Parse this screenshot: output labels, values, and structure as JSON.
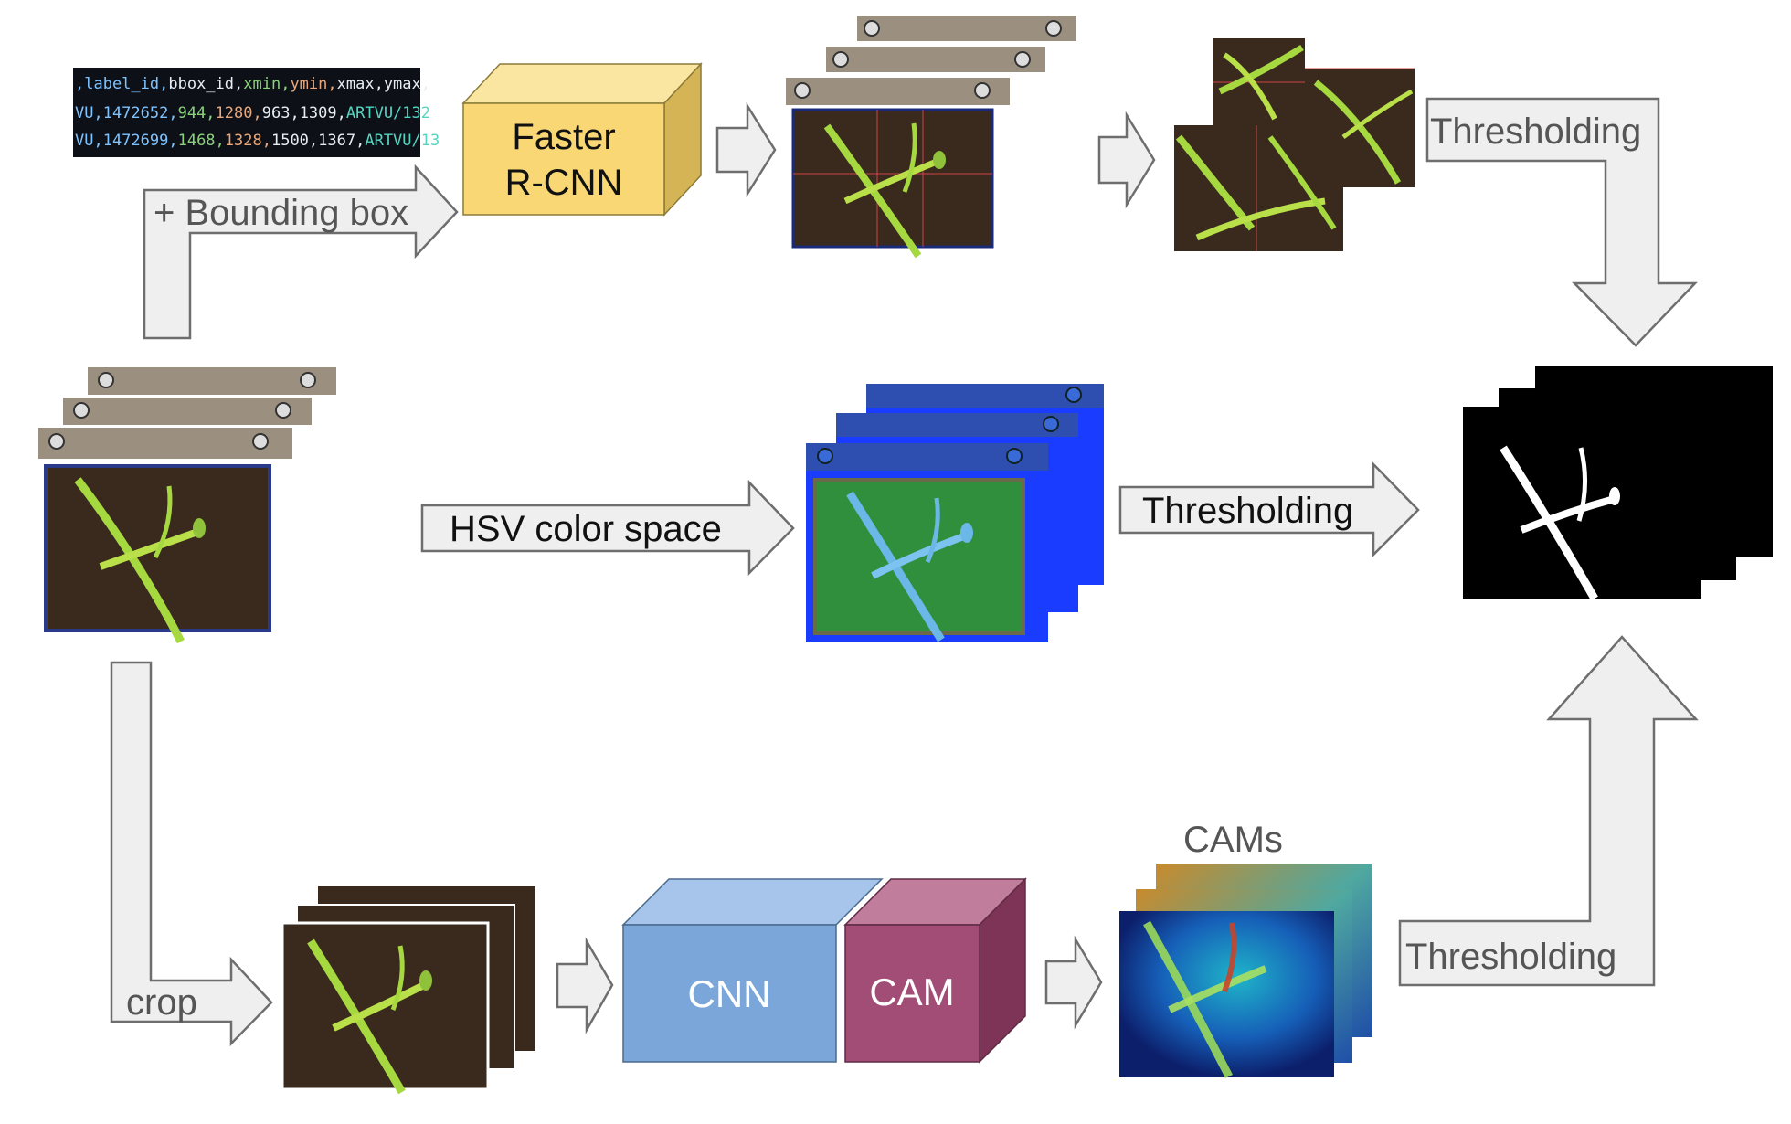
{
  "colors": {
    "arrow_fill": "#efefef",
    "arrow_stroke": "#6e6e6e",
    "faster_rcnn_front": "#f8d774",
    "faster_rcnn_top": "#fbe6a1",
    "faster_rcnn_side": "#d4b455",
    "cnn_front": "#7aa6da",
    "cnn_top": "#a7c5ea",
    "cnn_side": "#5f89bd",
    "cam_front": "#a24d75",
    "cam_top": "#c07e9c",
    "cam_side": "#7e3456",
    "soil": "#3a2a1e",
    "leaf": "#9acd32",
    "hsv_blue": "#1a3cff",
    "hsv_green": "#2f8f3c",
    "cam_navy": "#0c1f6b",
    "mask_black": "#000000"
  },
  "csv_snippet": {
    "header": {
      "t1": ",label_id,",
      "t2": "bbox_id,",
      "t3": "xmin,",
      "t4": "ymin,",
      "t5": "xmax,",
      "t6": "ymax,"
    },
    "row1": {
      "t1": "VU,1472652,",
      "t2": "944,",
      "t3": "1280,",
      "t4": "963,",
      "t5": "1309,",
      "t6": "ARTVU/132"
    },
    "row2": {
      "t1": "VU,1472699,",
      "t2": "1468,",
      "t3": "1328,",
      "t4": "1500,",
      "t5": "1367,",
      "t6": "ARTVU/13"
    }
  },
  "labels": {
    "bounding_box": "+ Bounding box",
    "faster_rcnn_line1": "Faster",
    "faster_rcnn_line2": "R-CNN",
    "thresholding_top": "Thresholding",
    "hsv_color_space": "HSV color space",
    "thresholding_mid": "Thresholding",
    "crop": "crop",
    "cnn": "CNN",
    "cam": "CAM",
    "cams": "CAMs",
    "thresholding_bottom": "Thresholding"
  }
}
